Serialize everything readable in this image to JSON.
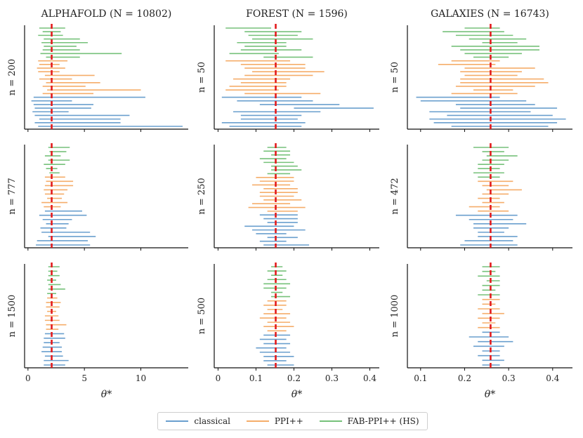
{
  "chart_data": {
    "type": "interval",
    "xlabel": "θ*",
    "columns": [
      {
        "name": "alphafold",
        "title": "ALPHAFOLD (N = 10802)",
        "true_theta": 2.1,
        "xlim": [
          -0.3,
          14.2
        ],
        "xticks": [
          0,
          5,
          10
        ],
        "rows": [
          {
            "label": "n = 200",
            "fab": [
              [
                1.0,
                3.3
              ],
              [
                1.3,
                2.9
              ],
              [
                0.9,
                3.1
              ],
              [
                1.4,
                4.6
              ],
              [
                1.2,
                5.3
              ],
              [
                1.4,
                4.3
              ],
              [
                1.3,
                4.6
              ],
              [
                1.1,
                8.3
              ],
              [
                1.6,
                4.6
              ]
            ],
            "ppi": [
              [
                0.9,
                3.5
              ],
              [
                1.0,
                2.8
              ],
              [
                0.8,
                3.3
              ],
              [
                0.9,
                2.8
              ],
              [
                1.5,
                5.9
              ],
              [
                1.0,
                3.9
              ],
              [
                1.6,
                6.4
              ],
              [
                1.3,
                5.1
              ],
              [
                1.7,
                10.0
              ],
              [
                1.3,
                5.8
              ]
            ],
            "classical": [
              [
                0.5,
                10.4
              ],
              [
                0.3,
                3.9
              ],
              [
                0.5,
                5.8
              ],
              [
                0.6,
                5.6
              ],
              [
                0.4,
                3.6
              ],
              [
                0.6,
                9.0
              ],
              [
                1.0,
                8.2
              ],
              [
                0.6,
                8.2
              ],
              [
                0.9,
                13.7
              ]
            ]
          },
          {
            "label": "n = 777",
            "fab": [
              [
                1.8,
                3.7
              ],
              [
                1.9,
                3.4
              ],
              [
                1.5,
                2.9
              ],
              [
                1.8,
                3.7
              ],
              [
                1.4,
                3.3
              ],
              [
                1.6,
                2.6
              ],
              [
                1.9,
                2.8
              ]
            ],
            "ppi": [
              [
                1.5,
                3.3
              ],
              [
                1.6,
                4.0
              ],
              [
                1.5,
                4.0
              ],
              [
                1.4,
                3.5
              ],
              [
                1.5,
                3.2
              ],
              [
                1.7,
                3.0
              ],
              [
                1.2,
                3.5
              ],
              [
                1.4,
                2.9
              ]
            ],
            "classical": [
              [
                1.5,
                4.8
              ],
              [
                1.0,
                5.2
              ],
              [
                1.3,
                3.9
              ],
              [
                1.6,
                3.6
              ],
              [
                1.1,
                3.4
              ],
              [
                1.2,
                5.5
              ],
              [
                1.8,
                6.0
              ],
              [
                0.8,
                5.3
              ],
              [
                0.7,
                5.5
              ]
            ]
          },
          {
            "label": "n = 1500",
            "fab": [
              [
                1.8,
                2.8
              ],
              [
                1.8,
                2.6
              ],
              [
                1.8,
                2.8
              ],
              [
                1.7,
                2.5
              ],
              [
                1.8,
                2.9
              ],
              [
                1.8,
                3.3
              ],
              [
                1.7,
                2.5
              ]
            ],
            "ppi": [
              [
                1.7,
                2.6
              ],
              [
                1.6,
                2.9
              ],
              [
                1.6,
                2.8
              ],
              [
                1.7,
                2.5
              ],
              [
                1.5,
                2.7
              ],
              [
                1.5,
                2.8
              ],
              [
                1.6,
                3.4
              ],
              [
                1.6,
                2.7
              ]
            ],
            "classical": [
              [
                1.5,
                3.2
              ],
              [
                1.4,
                3.3
              ],
              [
                1.4,
                2.8
              ],
              [
                1.3,
                3.0
              ],
              [
                1.2,
                3.0
              ],
              [
                1.5,
                3.1
              ],
              [
                1.4,
                3.6
              ],
              [
                1.4,
                3.3
              ]
            ]
          }
        ]
      },
      {
        "name": "forest",
        "title": "FOREST (N = 1596)",
        "true_theta": 0.152,
        "xlim": [
          -0.01,
          0.425
        ],
        "xticks": [
          0.0,
          0.1,
          0.2,
          0.3,
          0.4
        ],
        "rows": [
          {
            "label": "n = 50",
            "fab": [
              [
                0.02,
                0.14
              ],
              [
                0.07,
                0.22
              ],
              [
                0.08,
                0.21
              ],
              [
                0.09,
                0.25
              ],
              [
                0.05,
                0.18
              ],
              [
                0.07,
                0.18
              ],
              [
                0.06,
                0.22
              ],
              [
                0.03,
                0.16
              ],
              [
                0.12,
                0.25
              ]
            ],
            "ppi": [
              [
                0.02,
                0.19
              ],
              [
                0.06,
                0.23
              ],
              [
                0.07,
                0.23
              ],
              [
                0.09,
                0.28
              ],
              [
                0.07,
                0.25
              ],
              [
                0.04,
                0.19
              ],
              [
                0.06,
                0.18
              ],
              [
                0.03,
                0.18
              ],
              [
                0.02,
                0.16
              ],
              [
                0.07,
                0.27
              ]
            ],
            "classical": [
              [
                0.01,
                0.22
              ],
              [
                0.05,
                0.25
              ],
              [
                0.11,
                0.32
              ],
              [
                0.2,
                0.41
              ],
              [
                0.04,
                0.27
              ],
              [
                0.06,
                0.22
              ],
              [
                0.06,
                0.21
              ],
              [
                0.01,
                0.23
              ],
              [
                0.03,
                0.22
              ]
            ]
          },
          {
            "label": "n = 250",
            "fab": [
              [
                0.13,
                0.18
              ],
              [
                0.12,
                0.19
              ],
              [
                0.14,
                0.19
              ],
              [
                0.11,
                0.18
              ],
              [
                0.12,
                0.2
              ],
              [
                0.14,
                0.21
              ],
              [
                0.14,
                0.22
              ],
              [
                0.13,
                0.19
              ]
            ],
            "ppi": [
              [
                0.1,
                0.2
              ],
              [
                0.11,
                0.2
              ],
              [
                0.09,
                0.19
              ],
              [
                0.12,
                0.21
              ],
              [
                0.11,
                0.21
              ],
              [
                0.11,
                0.2
              ],
              [
                0.12,
                0.22
              ],
              [
                0.09,
                0.19
              ],
              [
                0.08,
                0.23
              ],
              [
                0.13,
                0.21
              ]
            ],
            "classical": [
              [
                0.11,
                0.21
              ],
              [
                0.12,
                0.21
              ],
              [
                0.13,
                0.21
              ],
              [
                0.07,
                0.2
              ],
              [
                0.09,
                0.23
              ],
              [
                0.1,
                0.18
              ],
              [
                0.13,
                0.21
              ],
              [
                0.11,
                0.18
              ],
              [
                0.12,
                0.24
              ]
            ]
          },
          {
            "label": "n = 500",
            "fab": [
              [
                0.14,
                0.17
              ],
              [
                0.13,
                0.18
              ],
              [
                0.14,
                0.17
              ],
              [
                0.13,
                0.18
              ],
              [
                0.12,
                0.19
              ],
              [
                0.12,
                0.18
              ],
              [
                0.14,
                0.17
              ],
              [
                0.14,
                0.19
              ]
            ],
            "ppi": [
              [
                0.13,
                0.18
              ],
              [
                0.12,
                0.18
              ],
              [
                0.13,
                0.17
              ],
              [
                0.12,
                0.19
              ],
              [
                0.11,
                0.18
              ],
              [
                0.13,
                0.19
              ],
              [
                0.12,
                0.2
              ],
              [
                0.13,
                0.18
              ]
            ],
            "classical": [
              [
                0.12,
                0.19
              ],
              [
                0.11,
                0.18
              ],
              [
                0.12,
                0.19
              ],
              [
                0.1,
                0.18
              ],
              [
                0.11,
                0.19
              ],
              [
                0.12,
                0.2
              ],
              [
                0.12,
                0.18
              ],
              [
                0.13,
                0.2
              ]
            ]
          }
        ]
      },
      {
        "name": "galaxies",
        "title": "GALAXIES (N = 16743)",
        "true_theta": 0.259,
        "xlim": [
          0.07,
          0.445
        ],
        "xticks": [
          0.1,
          0.2,
          0.3,
          0.4
        ],
        "rows": [
          {
            "label": "n = 50",
            "fab": [
              [
                0.2,
                0.28
              ],
              [
                0.15,
                0.29
              ],
              [
                0.18,
                0.31
              ],
              [
                0.21,
                0.34
              ],
              [
                0.24,
                0.32
              ],
              [
                0.17,
                0.37
              ],
              [
                0.19,
                0.37
              ],
              [
                0.2,
                0.33
              ],
              [
                0.22,
                0.3
              ]
            ],
            "ppi": [
              [
                0.17,
                0.28
              ],
              [
                0.14,
                0.27
              ],
              [
                0.2,
                0.36
              ],
              [
                0.19,
                0.33
              ],
              [
                0.2,
                0.32
              ],
              [
                0.19,
                0.38
              ],
              [
                0.19,
                0.39
              ],
              [
                0.18,
                0.36
              ],
              [
                0.22,
                0.31
              ],
              [
                0.17,
                0.32
              ]
            ],
            "classical": [
              [
                0.09,
                0.28
              ],
              [
                0.1,
                0.34
              ],
              [
                0.18,
                0.36
              ],
              [
                0.19,
                0.41
              ],
              [
                0.12,
                0.35
              ],
              [
                0.16,
                0.4
              ],
              [
                0.12,
                0.43
              ],
              [
                0.13,
                0.41
              ],
              [
                0.17,
                0.39
              ]
            ]
          },
          {
            "label": "n = 472",
            "fab": [
              [
                0.22,
                0.3
              ],
              [
                0.24,
                0.29
              ],
              [
                0.25,
                0.32
              ],
              [
                0.24,
                0.3
              ],
              [
                0.23,
                0.29
              ],
              [
                0.23,
                0.28
              ],
              [
                0.22,
                0.29
              ],
              [
                0.23,
                0.28
              ]
            ],
            "ppi": [
              [
                0.23,
                0.31
              ],
              [
                0.24,
                0.3
              ],
              [
                0.25,
                0.33
              ],
              [
                0.24,
                0.3
              ],
              [
                0.23,
                0.28
              ],
              [
                0.24,
                0.29
              ],
              [
                0.21,
                0.28
              ],
              [
                0.23,
                0.3
              ]
            ],
            "classical": [
              [
                0.18,
                0.32
              ],
              [
                0.21,
                0.31
              ],
              [
                0.22,
                0.34
              ],
              [
                0.22,
                0.3
              ],
              [
                0.23,
                0.29
              ],
              [
                0.23,
                0.32
              ],
              [
                0.2,
                0.31
              ],
              [
                0.19,
                0.32
              ]
            ]
          },
          {
            "label": "n = 1000",
            "fab": [
              [
                0.24,
                0.28
              ],
              [
                0.24,
                0.27
              ],
              [
                0.23,
                0.28
              ],
              [
                0.25,
                0.28
              ],
              [
                0.24,
                0.28
              ],
              [
                0.24,
                0.27
              ],
              [
                0.23,
                0.28
              ]
            ],
            "ppi": [
              [
                0.24,
                0.28
              ],
              [
                0.24,
                0.27
              ],
              [
                0.23,
                0.28
              ],
              [
                0.24,
                0.29
              ],
              [
                0.23,
                0.28
              ],
              [
                0.24,
                0.27
              ],
              [
                0.23,
                0.28
              ]
            ],
            "classical": [
              [
                0.24,
                0.28
              ],
              [
                0.21,
                0.3
              ],
              [
                0.23,
                0.31
              ],
              [
                0.22,
                0.29
              ],
              [
                0.24,
                0.28
              ],
              [
                0.23,
                0.28
              ],
              [
                0.24,
                0.29
              ],
              [
                0.24,
                0.28
              ]
            ]
          }
        ]
      }
    ],
    "legend": [
      {
        "label": "classical",
        "color": "#6a9fce"
      },
      {
        "label": "PPI++",
        "color": "#f5ad6a"
      },
      {
        "label": "FAB-PPI++ (HS)",
        "color": "#76c17a"
      }
    ],
    "legend_position": "bottom-center",
    "reference_line_color": "#e31a1c",
    "grid": false
  }
}
